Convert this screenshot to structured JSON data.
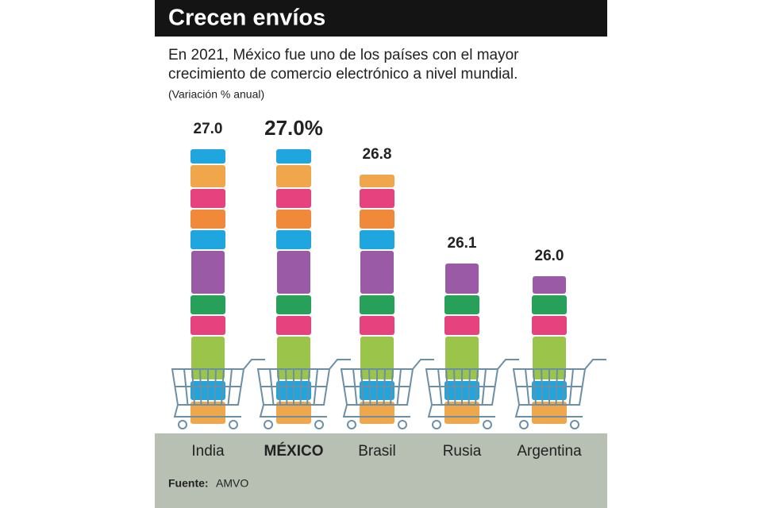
{
  "chart_data": {
    "type": "pictorial-bar",
    "title": "Crecen envíos",
    "subtitle": [
      "En 2021, México fue uno de los países con el mayor",
      "crecimiento de comercio electrónico a nivel mundial."
    ],
    "unit_note": "(Variación % anual)",
    "categories": [
      "India",
      "MÉXICO",
      "Brasil",
      "Rusia",
      "Argentina"
    ],
    "values": [
      27.0,
      27.0,
      26.8,
      26.1,
      26.0
    ],
    "value_labels": [
      "27.0",
      "27.0%",
      "26.8",
      "26.1",
      "26.0"
    ],
    "source_label": "Fuente:",
    "source": "AMVO"
  }
}
